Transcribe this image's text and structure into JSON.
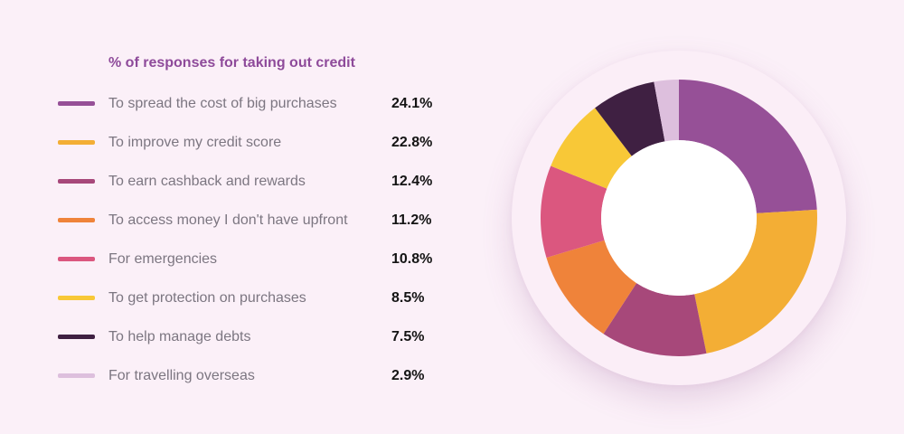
{
  "chart_data": {
    "type": "pie",
    "title": "% of responses for taking out credit",
    "categories": [
      "To spread the cost of big purchases",
      "To improve my credit score",
      "To earn cashback and rewards",
      "To access money I don't have upfront",
      "For emergencies",
      "To get protection on purchases",
      "To help manage debts",
      "For travelling overseas"
    ],
    "values": [
      24.1,
      22.8,
      12.4,
      11.2,
      10.8,
      8.5,
      7.5,
      2.9
    ],
    "value_labels": [
      "24.1%",
      "22.8%",
      "12.4%",
      "11.2%",
      "10.8%",
      "8.5%",
      "7.5%",
      "2.9%"
    ],
    "colors": [
      "#965097",
      "#f3ae35",
      "#a7487a",
      "#ef833a",
      "#db577f",
      "#f8c837",
      "#3f2042",
      "#ddbfdd"
    ],
    "donut": true,
    "legend": "left"
  }
}
